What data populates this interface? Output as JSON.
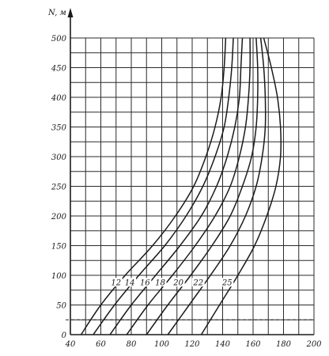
{
  "chart_data": {
    "type": "line",
    "ylabel": "N, м",
    "xlabel": "",
    "xlim": [
      40,
      200
    ],
    "ylim": [
      0,
      500
    ],
    "x_ticks": [
      40,
      60,
      80,
      100,
      120,
      140,
      160,
      180,
      200
    ],
    "x_tick_labels": [
      "40",
      "60",
      "80",
      "100",
      "120",
      "140",
      "160",
      "180",
      "200"
    ],
    "y_ticks": [
      0,
      50,
      100,
      150,
      200,
      250,
      300,
      350,
      400,
      450,
      500
    ],
    "y_tick_labels": [
      "0",
      "50",
      "100",
      "150",
      "200",
      "250",
      "300",
      "350",
      "400",
      "450",
      "500"
    ],
    "grid": true,
    "legend": "none",
    "line_color": "#1a1a1a",
    "grid_color": "#2a2a2a",
    "series": [
      {
        "name": "12",
        "points": [
          [
            47,
            0
          ],
          [
            60,
            50
          ],
          [
            76,
            100
          ],
          [
            94,
            150
          ],
          [
            109,
            200
          ],
          [
            121,
            250
          ],
          [
            129,
            300
          ],
          [
            135,
            350
          ],
          [
            139,
            400
          ],
          [
            141,
            450
          ],
          [
            142,
            500
          ]
        ]
      },
      {
        "name": "14",
        "points": [
          [
            55,
            0
          ],
          [
            69,
            50
          ],
          [
            85,
            100
          ],
          [
            102,
            150
          ],
          [
            116,
            200
          ],
          [
            127,
            250
          ],
          [
            135,
            300
          ],
          [
            141,
            350
          ],
          [
            144,
            400
          ],
          [
            146,
            450
          ],
          [
            147,
            500
          ]
        ]
      },
      {
        "name": "16",
        "points": [
          [
            66,
            0
          ],
          [
            80,
            50
          ],
          [
            96,
            100
          ],
          [
            112,
            150
          ],
          [
            126,
            200
          ],
          [
            136,
            250
          ],
          [
            143,
            300
          ],
          [
            148,
            350
          ],
          [
            151,
            400
          ],
          [
            152,
            450
          ],
          [
            153,
            500
          ]
        ]
      },
      {
        "name": "18",
        "points": [
          [
            77,
            0
          ],
          [
            91,
            50
          ],
          [
            107,
            100
          ],
          [
            122,
            150
          ],
          [
            135,
            200
          ],
          [
            145,
            250
          ],
          [
            151,
            300
          ],
          [
            155,
            350
          ],
          [
            157,
            400
          ],
          [
            158,
            450
          ],
          [
            158,
            500
          ]
        ]
      },
      {
        "name": "20",
        "points": [
          [
            90,
            0
          ],
          [
            104,
            50
          ],
          [
            119,
            100
          ],
          [
            133,
            150
          ],
          [
            145,
            200
          ],
          [
            153,
            250
          ],
          [
            159,
            300
          ],
          [
            162,
            350
          ],
          [
            163,
            400
          ],
          [
            163,
            450
          ],
          [
            162,
            500
          ]
        ]
      },
      {
        "name": "22",
        "points": [
          [
            104,
            0
          ],
          [
            118,
            50
          ],
          [
            132,
            100
          ],
          [
            145,
            150
          ],
          [
            155,
            200
          ],
          [
            162,
            250
          ],
          [
            166,
            300
          ],
          [
            168,
            350
          ],
          [
            168,
            400
          ],
          [
            167,
            450
          ],
          [
            165,
            500
          ]
        ]
      },
      {
        "name": "25",
        "points": [
          [
            126,
            0
          ],
          [
            138,
            50
          ],
          [
            150,
            100
          ],
          [
            161,
            150
          ],
          [
            169,
            200
          ],
          [
            175,
            250
          ],
          [
            178,
            300
          ],
          [
            178,
            350
          ],
          [
            176,
            400
          ],
          [
            172,
            450
          ],
          [
            167,
            500
          ]
        ]
      }
    ],
    "curve_labels": [
      {
        "text": "12",
        "at": [
          70,
          85
        ]
      },
      {
        "text": "14",
        "at": [
          79,
          85
        ]
      },
      {
        "text": "16",
        "at": [
          89,
          85
        ]
      },
      {
        "text": "18",
        "at": [
          99,
          85
        ]
      },
      {
        "text": "20",
        "at": [
          111,
          85
        ]
      },
      {
        "text": "22",
        "at": [
          124,
          85
        ]
      },
      {
        "text": "25",
        "at": [
          143,
          85
        ]
      }
    ]
  }
}
